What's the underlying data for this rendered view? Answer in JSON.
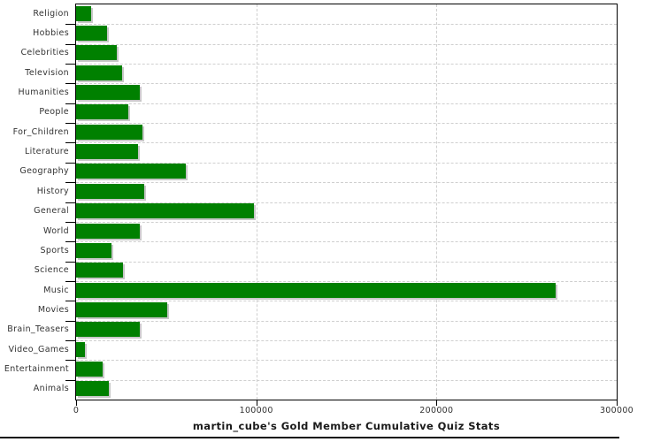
{
  "chart_data": {
    "type": "bar",
    "orientation": "horizontal",
    "title": "martin_cube's Gold Member Cumulative Quiz Stats",
    "categories": [
      "Religion",
      "Hobbies",
      "Celebrities",
      "Television",
      "Humanities",
      "People",
      "For_Children",
      "Literature",
      "Geography",
      "History",
      "General",
      "World",
      "Sports",
      "Science",
      "Music",
      "Movies",
      "Brain_Teasers",
      "Video_Games",
      "Entertainment",
      "Animals"
    ],
    "values": [
      8500,
      17000,
      22600,
      25400,
      35500,
      29200,
      36800,
      34400,
      61000,
      37800,
      98600,
      35400,
      19800,
      26100,
      266000,
      50400,
      35400,
      4700,
      14800,
      18000
    ],
    "xlim": [
      0,
      300000
    ],
    "x_ticks": [
      0,
      100000,
      200000,
      300000
    ],
    "x_tick_labels": [
      "0",
      "100000",
      "200000",
      "300000"
    ],
    "xlabel": "",
    "ylabel": "",
    "grid": "dashed",
    "legend": "none",
    "colors": {
      "bar": "#008000",
      "bar_shadow": "#c8c8c8",
      "grid": "#cfcfcf",
      "axis": "#000000",
      "tick_label": "#333333",
      "title": "#1a1a1a",
      "background": "#ffffff"
    }
  }
}
